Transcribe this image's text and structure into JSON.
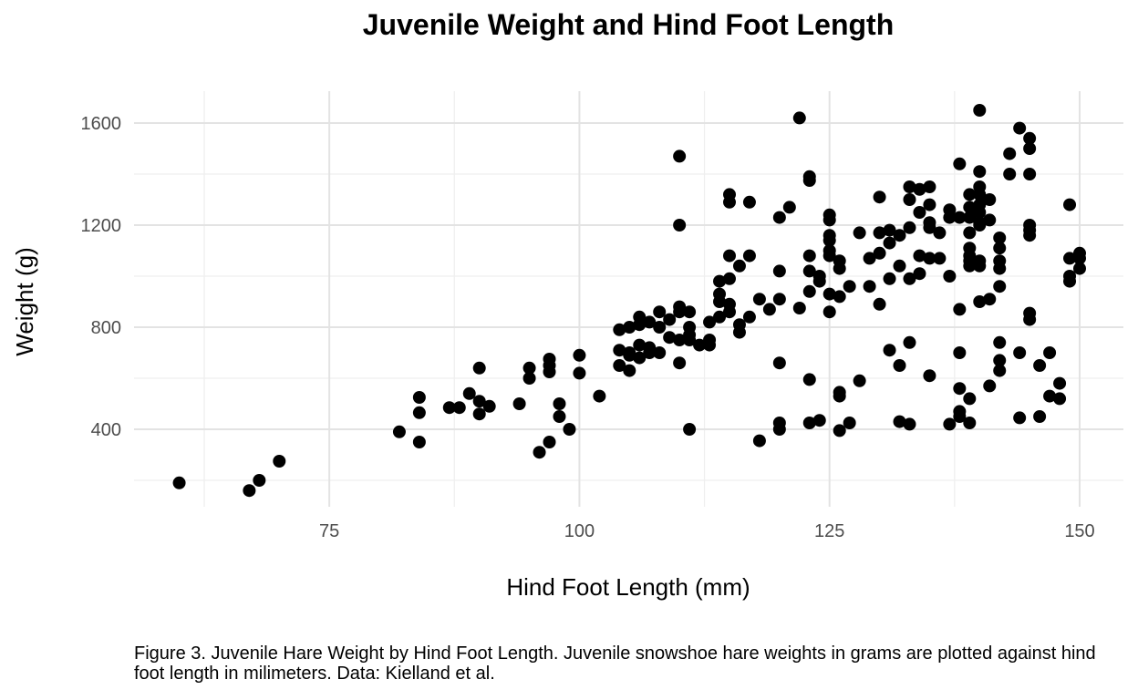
{
  "chart_data": {
    "type": "scatter",
    "title": "Juvenile Weight and Hind Foot Length",
    "xlabel": "Hind Foot Length (mm)",
    "ylabel": "Weight (g)",
    "xlim": [
      58,
      152
    ],
    "ylim": [
      130,
      1710
    ],
    "x_ticks": [
      75,
      100,
      125,
      150
    ],
    "y_ticks": [
      400,
      800,
      1200,
      1600
    ],
    "x_minor": [
      62.5,
      87.5,
      112.5,
      137.5
    ],
    "y_minor": [
      200,
      600,
      1000,
      1400
    ],
    "grid": true,
    "point_color": "#000000",
    "points": [
      [
        60,
        190
      ],
      [
        67,
        160
      ],
      [
        68,
        200
      ],
      [
        70,
        275
      ],
      [
        82,
        390
      ],
      [
        84,
        525
      ],
      [
        84,
        465
      ],
      [
        84,
        350
      ],
      [
        87,
        485
      ],
      [
        88,
        485
      ],
      [
        89,
        540
      ],
      [
        90,
        640
      ],
      [
        90,
        510
      ],
      [
        90,
        460
      ],
      [
        91,
        490
      ],
      [
        94,
        500
      ],
      [
        95,
        640
      ],
      [
        95,
        600
      ],
      [
        96,
        310
      ],
      [
        97,
        675
      ],
      [
        97,
        650
      ],
      [
        97,
        625
      ],
      [
        97,
        350
      ],
      [
        98,
        500
      ],
      [
        98,
        450
      ],
      [
        99,
        400
      ],
      [
        100,
        690
      ],
      [
        100,
        620
      ],
      [
        102,
        530
      ],
      [
        104,
        790
      ],
      [
        104,
        710
      ],
      [
        104,
        650
      ],
      [
        105,
        800
      ],
      [
        105,
        700
      ],
      [
        105,
        690
      ],
      [
        105,
        630
      ],
      [
        106,
        840
      ],
      [
        106,
        810
      ],
      [
        106,
        730
      ],
      [
        106,
        680
      ],
      [
        107,
        820
      ],
      [
        107,
        720
      ],
      [
        107,
        700
      ],
      [
        108,
        860
      ],
      [
        108,
        800
      ],
      [
        108,
        700
      ],
      [
        109,
        830
      ],
      [
        109,
        760
      ],
      [
        110,
        1470
      ],
      [
        110,
        1200
      ],
      [
        110,
        880
      ],
      [
        110,
        860
      ],
      [
        110,
        750
      ],
      [
        110,
        660
      ],
      [
        111,
        860
      ],
      [
        111,
        800
      ],
      [
        111,
        770
      ],
      [
        111,
        750
      ],
      [
        111,
        400
      ],
      [
        112,
        730
      ],
      [
        113,
        820
      ],
      [
        113,
        750
      ],
      [
        113,
        730
      ],
      [
        114,
        980
      ],
      [
        114,
        930
      ],
      [
        114,
        900
      ],
      [
        114,
        840
      ],
      [
        115,
        1320
      ],
      [
        115,
        1290
      ],
      [
        115,
        1080
      ],
      [
        115,
        990
      ],
      [
        115,
        890
      ],
      [
        115,
        860
      ],
      [
        116,
        1040
      ],
      [
        116,
        810
      ],
      [
        116,
        780
      ],
      [
        117,
        1290
      ],
      [
        117,
        1080
      ],
      [
        117,
        840
      ],
      [
        118,
        910
      ],
      [
        118,
        355
      ],
      [
        119,
        870
      ],
      [
        120,
        1230
      ],
      [
        120,
        1020
      ],
      [
        120,
        910
      ],
      [
        120,
        660
      ],
      [
        120,
        425
      ],
      [
        120,
        400
      ],
      [
        121,
        1270
      ],
      [
        122,
        1620
      ],
      [
        122,
        875
      ],
      [
        123,
        1390
      ],
      [
        123,
        1375
      ],
      [
        123,
        1080
      ],
      [
        123,
        1020
      ],
      [
        123,
        940
      ],
      [
        123,
        595
      ],
      [
        123,
        425
      ],
      [
        124,
        1000
      ],
      [
        124,
        980
      ],
      [
        124,
        435
      ],
      [
        125,
        1240
      ],
      [
        125,
        1220
      ],
      [
        125,
        1160
      ],
      [
        125,
        1140
      ],
      [
        125,
        1100
      ],
      [
        125,
        1080
      ],
      [
        125,
        930
      ],
      [
        125,
        860
      ],
      [
        126,
        1060
      ],
      [
        126,
        1030
      ],
      [
        126,
        920
      ],
      [
        126,
        545
      ],
      [
        126,
        530
      ],
      [
        126,
        395
      ],
      [
        127,
        960
      ],
      [
        127,
        425
      ],
      [
        128,
        1170
      ],
      [
        128,
        590
      ],
      [
        129,
        1070
      ],
      [
        129,
        960
      ],
      [
        130,
        1310
      ],
      [
        130,
        1170
      ],
      [
        130,
        1090
      ],
      [
        130,
        890
      ],
      [
        131,
        1180
      ],
      [
        131,
        1130
      ],
      [
        131,
        990
      ],
      [
        131,
        710
      ],
      [
        132,
        1160
      ],
      [
        132,
        1040
      ],
      [
        132,
        650
      ],
      [
        132,
        430
      ],
      [
        133,
        1350
      ],
      [
        133,
        1300
      ],
      [
        133,
        1190
      ],
      [
        133,
        990
      ],
      [
        133,
        740
      ],
      [
        133,
        420
      ],
      [
        134,
        1340
      ],
      [
        134,
        1250
      ],
      [
        134,
        1080
      ],
      [
        134,
        1010
      ],
      [
        135,
        1350
      ],
      [
        135,
        1280
      ],
      [
        135,
        1210
      ],
      [
        135,
        1190
      ],
      [
        135,
        1070
      ],
      [
        135,
        610
      ],
      [
        136,
        1170
      ],
      [
        136,
        1070
      ],
      [
        137,
        1260
      ],
      [
        137,
        1230
      ],
      [
        137,
        1000
      ],
      [
        137,
        420
      ],
      [
        138,
        1440
      ],
      [
        138,
        1230
      ],
      [
        138,
        870
      ],
      [
        138,
        700
      ],
      [
        138,
        560
      ],
      [
        138,
        470
      ],
      [
        138,
        450
      ],
      [
        139,
        1320
      ],
      [
        139,
        1270
      ],
      [
        139,
        1230
      ],
      [
        139,
        1170
      ],
      [
        139,
        1110
      ],
      [
        139,
        1080
      ],
      [
        139,
        1060
      ],
      [
        139,
        1040
      ],
      [
        139,
        520
      ],
      [
        139,
        425
      ],
      [
        140,
        1650
      ],
      [
        140,
        1410
      ],
      [
        140,
        1350
      ],
      [
        140,
        1320
      ],
      [
        140,
        1280
      ],
      [
        140,
        1250
      ],
      [
        140,
        1210
      ],
      [
        140,
        1200
      ],
      [
        140,
        1060
      ],
      [
        140,
        1040
      ],
      [
        140,
        900
      ],
      [
        141,
        1300
      ],
      [
        141,
        1220
      ],
      [
        141,
        910
      ],
      [
        141,
        570
      ],
      [
        142,
        1150
      ],
      [
        142,
        1110
      ],
      [
        142,
        1060
      ],
      [
        142,
        1030
      ],
      [
        142,
        960
      ],
      [
        142,
        740
      ],
      [
        142,
        670
      ],
      [
        142,
        630
      ],
      [
        143,
        1480
      ],
      [
        143,
        1400
      ],
      [
        144,
        1580
      ],
      [
        144,
        700
      ],
      [
        144,
        445
      ],
      [
        145,
        1540
      ],
      [
        145,
        1500
      ],
      [
        145,
        1400
      ],
      [
        145,
        1200
      ],
      [
        145,
        1180
      ],
      [
        145,
        1160
      ],
      [
        145,
        855
      ],
      [
        145,
        830
      ],
      [
        146,
        650
      ],
      [
        146,
        450
      ],
      [
        147,
        700
      ],
      [
        147,
        530
      ],
      [
        148,
        580
      ],
      [
        148,
        520
      ],
      [
        149,
        1280
      ],
      [
        149,
        1070
      ],
      [
        149,
        1000
      ],
      [
        149,
        980
      ],
      [
        150,
        1090
      ],
      [
        150,
        1070
      ],
      [
        150,
        1030
      ]
    ]
  },
  "caption": "Figure 3. Juvenile Hare Weight by Hind Foot Length. Juvenile snowshoe hare weights in grams are plotted against hind foot length in milimeters. Data: Kielland et al."
}
